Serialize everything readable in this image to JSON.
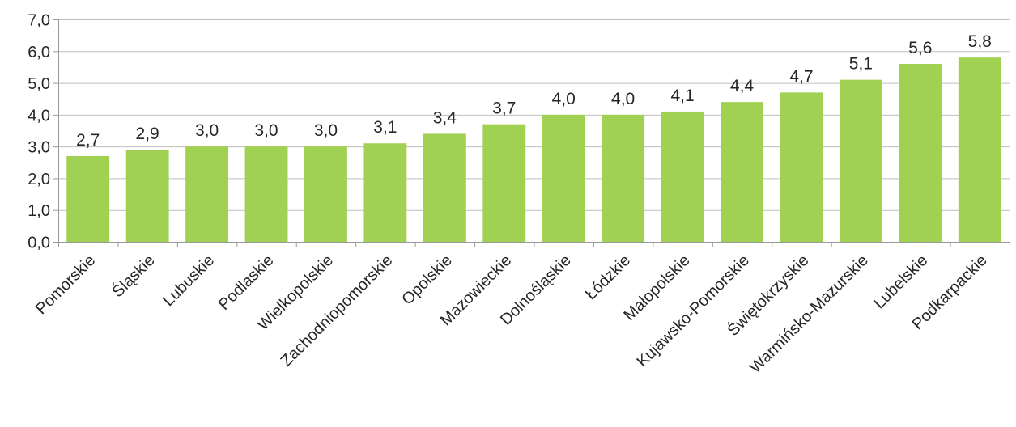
{
  "chart_data": {
    "type": "bar",
    "title": "",
    "xlabel": "",
    "ylabel": "",
    "categories": [
      "Pomorskie",
      "Śląskie",
      "Lubuskie",
      "Podlaskie",
      "Wielkopolskie",
      "Zachodniopomorskie",
      "Opolskie",
      "Mazowieckie",
      "Dolnośląskie",
      "Łódzkie",
      "Małopolskie",
      "Kujawsko-Pomorskie",
      "Świętokrzyskie",
      "Warmińsko-Mazurskie",
      "Lubelskie",
      "Podkarpackie"
    ],
    "values": [
      2.7,
      2.9,
      3.0,
      3.0,
      3.0,
      3.1,
      3.4,
      3.7,
      4.0,
      4.0,
      4.1,
      4.4,
      4.7,
      5.1,
      5.6,
      5.8
    ],
    "data_labels": [
      "2,7",
      "2,9",
      "3,0",
      "3,0",
      "3,0",
      "3,1",
      "3,4",
      "3,7",
      "4,0",
      "4,0",
      "4,1",
      "4,4",
      "4,7",
      "5,1",
      "5,6",
      "5,8"
    ],
    "ylim": [
      0,
      7
    ],
    "y_ticks": [
      0,
      1,
      2,
      3,
      4,
      5,
      6,
      7
    ],
    "y_tick_labels": [
      "0,0",
      "1,0",
      "2,0",
      "3,0",
      "4,0",
      "5,0",
      "6,0",
      "7,0"
    ],
    "grid": true,
    "legend": "none",
    "bar_color": "#a0d152"
  }
}
